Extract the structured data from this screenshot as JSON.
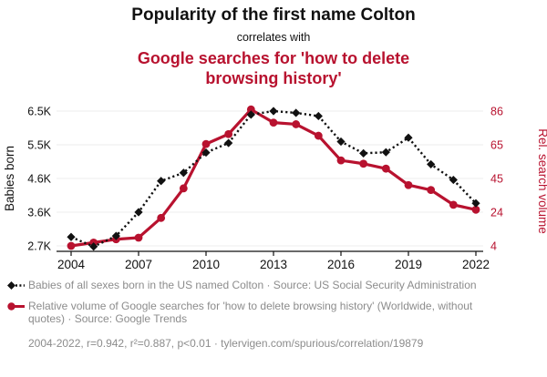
{
  "header": {
    "title": "Popularity of the first name Colton",
    "connector": "correlates with",
    "subtitle": "Google searches for 'how to delete browsing history'"
  },
  "chart_data": {
    "type": "line",
    "x": [
      2004,
      2005,
      2006,
      2007,
      2008,
      2009,
      2010,
      2011,
      2012,
      2013,
      2014,
      2015,
      2016,
      2017,
      2018,
      2019,
      2020,
      2021,
      2022
    ],
    "x_tick_labels": [
      "2004",
      "2007",
      "2010",
      "2013",
      "2016",
      "2019",
      "2022"
    ],
    "x_tick_years": [
      2004,
      2007,
      2010,
      2013,
      2016,
      2019,
      2022
    ],
    "series": [
      {
        "name": "Babies of all sexes born in the US named Colton",
        "axis": "right2_left",
        "color": "#111111",
        "style": "dotted-line-diamond-markers",
        "values": [
          2950,
          2680,
          2980,
          3650,
          4530,
          4760,
          5330,
          5600,
          6400,
          6500,
          6450,
          6360,
          5640,
          5310,
          5340,
          5750,
          5000,
          4560,
          3900
        ]
      },
      {
        "name": "Relative volume of Google searches for 'how to delete browsing history'",
        "axis": "right",
        "color": "#b8122f",
        "style": "solid-line-circle-markers",
        "values": [
          4,
          6,
          8,
          9,
          21,
          39,
          66,
          72,
          87,
          79,
          78,
          71,
          56,
          54,
          51,
          41,
          38,
          29,
          26
        ]
      }
    ],
    "left_axis": {
      "label": "Babies born",
      "range": [
        2700,
        6500
      ],
      "ticks": [
        2700,
        3650,
        4600,
        5550,
        6500
      ],
      "tick_labels": [
        "2.7K",
        "3.6K",
        "4.6K",
        "5.5K",
        "6.5K"
      ]
    },
    "right_axis": {
      "label": "Rel. search volume",
      "range": [
        4,
        86
      ],
      "ticks": [
        4,
        24.5,
        45,
        65.5,
        86
      ],
      "tick_labels": [
        "4",
        "24",
        "45",
        "65",
        "86"
      ]
    },
    "grid": true,
    "legend_position": "bottom"
  },
  "legend": {
    "entries": [
      {
        "marker": "black-diamond-dotted",
        "color": "#111111",
        "label": "Babies of all sexes born in the US named Colton · Source: US Social Security Administration"
      },
      {
        "marker": "red-circle-solid",
        "color": "#b8122f",
        "label": "Relative volume of Google searches for 'how to delete browsing history' (Worldwide, without quotes) · Source: Google Trends"
      }
    ],
    "footer": "2004-2022, r=0.942, r²=0.887, p<0.01 · tylervigen.com/spurious/correlation/19879"
  },
  "colors": {
    "accent_red": "#b8122f",
    "text_black": "#111111",
    "legend_gray": "#8c8c8c",
    "grid_gray": "#ececec"
  }
}
